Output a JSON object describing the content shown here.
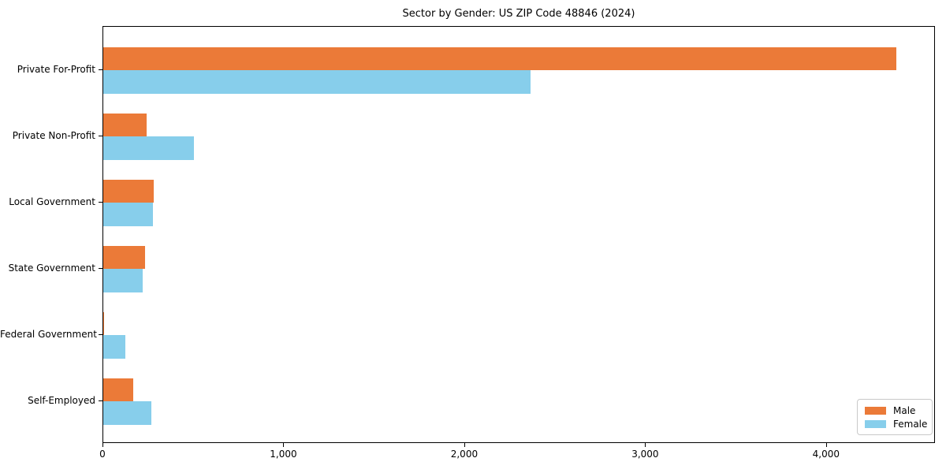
{
  "chart_data": {
    "type": "bar",
    "orientation": "horizontal",
    "title": "Sector by Gender: US ZIP Code 48846 (2024)",
    "categories": [
      "Private For-Profit",
      "Private Non-Profit",
      "Local Government",
      "State Government",
      "Federal Government",
      "Self-Employed"
    ],
    "series": [
      {
        "name": "Male",
        "color": "#eb7a38",
        "values": [
          4383,
          238,
          280,
          233,
          4,
          165
        ]
      },
      {
        "name": "Female",
        "color": "#87ceeb",
        "values": [
          2361,
          503,
          276,
          217,
          121,
          264
        ]
      }
    ],
    "xlim": [
      0,
      4602
    ],
    "x_ticks": [
      0,
      1000,
      2000,
      3000,
      4000
    ],
    "x_tick_labels": [
      "0",
      "1,000",
      "2,000",
      "3,000",
      "4,000"
    ],
    "xlabel": "",
    "ylabel": "",
    "grid": false,
    "legend": {
      "position": "lower-right",
      "entries": [
        "Male",
        "Female"
      ]
    }
  }
}
